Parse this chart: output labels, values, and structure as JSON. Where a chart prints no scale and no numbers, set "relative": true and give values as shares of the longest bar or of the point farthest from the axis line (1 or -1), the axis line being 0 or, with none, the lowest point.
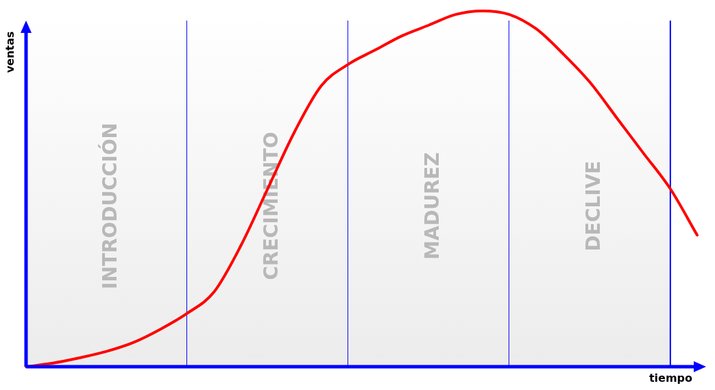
{
  "chart_data": {
    "type": "line",
    "relative": true,
    "xlabel": "tiempo",
    "ylabel": "ventas",
    "marker": "none",
    "grid": "x",
    "line_style": "solid",
    "categories": [
      null,
      null,
      null,
      null,
      null,
      null,
      null,
      null,
      null,
      null,
      null,
      null,
      null,
      null,
      null,
      null,
      null,
      null,
      null,
      null,
      null,
      null,
      null,
      null,
      null,
      null
    ],
    "series": [
      {
        "color": "#ff0000",
        "values": [
          0,
          0.01,
          0.025,
          0.043,
          0.068,
          0.105,
          0.15,
          0.21,
          0.34,
          0.5,
          0.66,
          0.79,
          0.85,
          0.89,
          0.93,
          0.96,
          0.99,
          1,
          0.99,
          0.95,
          0.88,
          0.8,
          0.7,
          0.6,
          0.5,
          0.37
        ]
      }
    ],
    "annotations": [
      "INTRODUCCIÓN",
      "CRECIMIENTO",
      "MADUREZ",
      "DECLIVE"
    ]
  }
}
